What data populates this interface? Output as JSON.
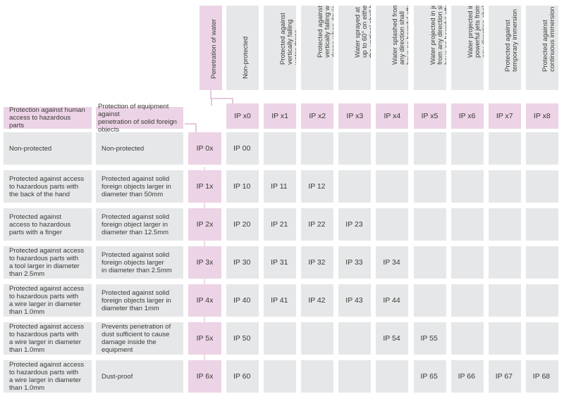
{
  "water_header": "Penetration of water",
  "human_header": "Protection against human\naccess to hazardous parts",
  "equipment_header": "Protection of equipment against\npenetration of solid foreign objects",
  "water_levels": [
    {
      "code": "IP x0",
      "desc": "Non-protected"
    },
    {
      "code": "IP x1",
      "desc": "Protected against\nvertically falling\nwater drops"
    },
    {
      "code": "IP x2",
      "desc": "Protected against\nvertically falling water\ndrops when device is tilted\nup to 15°"
    },
    {
      "code": "IP x3",
      "desc": "Water sprayed at an angle\nup to 60° on either side of\nthe vertical shall have\nno harmful effects"
    },
    {
      "code": "IP x4",
      "desc": "Water splashed from\nany direction shall\nhave no harmful effects"
    },
    {
      "code": "IP x5",
      "desc": "Water projected in jets\nfrom any direction shall\nhave no harmful effects"
    },
    {
      "code": "IP x6",
      "desc": "Water projected in\npowerful jets from\nany direction shall\nhave no harmful effects"
    },
    {
      "code": "IP x7",
      "desc": "Protected against\ntemporary immersion"
    },
    {
      "code": "IP x8",
      "desc": "Protected against\ncontinuous immersion"
    }
  ],
  "rows": [
    {
      "code": "IP 0x",
      "human": "Non-protected",
      "equipment": "Non-protected",
      "ratings": [
        "IP 00",
        "",
        "",
        "",
        "",
        "",
        "",
        "",
        ""
      ]
    },
    {
      "code": "IP 1x",
      "human": "Protected against access\nto hazardous parts with\nthe back of the hand",
      "equipment": "Protected against solid\nforeign objects larger in\ndiameter than 50mm",
      "ratings": [
        "IP 10",
        "IP 11",
        "IP 12",
        "",
        "",
        "",
        "",
        "",
        ""
      ]
    },
    {
      "code": "IP 2x",
      "human": "Protected against\naccess to hazardous\nparts with a finger",
      "equipment": "Protected against solid\nforeign object larger in\ndiameter than 12.5mm",
      "ratings": [
        "IP 20",
        "IP 21",
        "IP 22",
        "IP 23",
        "",
        "",
        "",
        "",
        ""
      ]
    },
    {
      "code": "IP 3x",
      "human": "Protected against access\nto hazardous parts with\na tool larger in diameter\nthan 2.5mm",
      "equipment": "Protected against solid\nforeign objects larger\nin diameter than 2.5mm",
      "ratings": [
        "IP 30",
        "IP 31",
        "IP 32",
        "IP 33",
        "IP 34",
        "",
        "",
        "",
        ""
      ]
    },
    {
      "code": "IP 4x",
      "human": "Protected against access\nto hazardous parts with\na wire larger in diameter\nthan 1.0mm",
      "equipment": "Protected against solid\nforeign objects larger in\ndiameter than 1mm",
      "ratings": [
        "IP 40",
        "IP 41",
        "IP 42",
        "IP 43",
        "IP 44",
        "",
        "",
        "",
        ""
      ]
    },
    {
      "code": "IP 5x",
      "human": "Protected against access\nto hazardous parts with\na wire larger in diameter\nthan 1.0mm",
      "equipment": "Prevents penetration of\ndust sufficient to cause\ndamage inside the\nequipment",
      "ratings": [
        "IP 50",
        "",
        "",
        "",
        "IP 54",
        "IP 55",
        "",
        "",
        ""
      ]
    },
    {
      "code": "IP 6x",
      "human": "Protected against access\nto hazardous parts with\na wire larger in diameter\nthan 1.0mm",
      "equipment": "Dust-proof",
      "ratings": [
        "IP 60",
        "",
        "",
        "",
        "",
        "IP 65",
        "IP 66",
        "IP 67",
        "IP 68"
      ]
    }
  ],
  "colors": {
    "pink": "#ecd3e5",
    "grey": "#e6e7e8",
    "line": "#dcb7d0"
  }
}
